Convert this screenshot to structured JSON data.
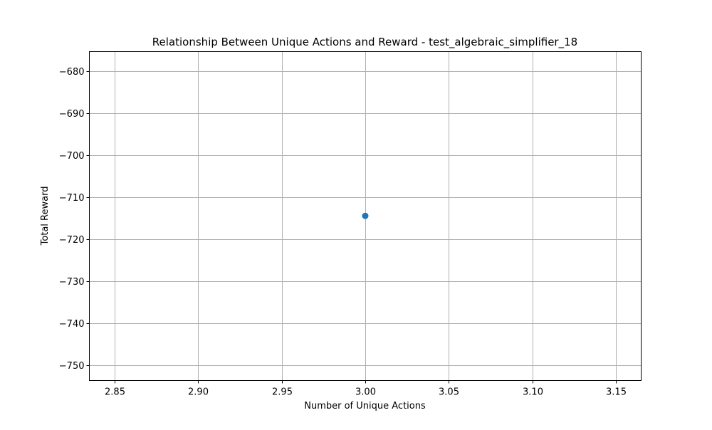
{
  "chart_data": {
    "type": "scatter",
    "title": "Relationship Between Unique Actions and Reward - test_algebraic_simplifier_18",
    "xlabel": "Number of Unique Actions",
    "ylabel": "Total Reward",
    "xlim": [
      2.835,
      3.165
    ],
    "ylim": [
      -753.6,
      -675.3
    ],
    "x_ticks": [
      2.85,
      2.9,
      2.95,
      3.0,
      3.05,
      3.1,
      3.15
    ],
    "x_tick_labels": [
      "2.85",
      "2.90",
      "2.95",
      "3.00",
      "3.05",
      "3.10",
      "3.15"
    ],
    "y_ticks": [
      -680,
      -690,
      -700,
      -710,
      -720,
      -730,
      -740,
      -750
    ],
    "y_tick_labels": [
      "−680",
      "−690",
      "−700",
      "−710",
      "−720",
      "−730",
      "−740",
      "−750"
    ],
    "grid": true,
    "series": [
      {
        "color": "#1f77b4",
        "points": [
          {
            "x": 3.0,
            "y": -714.4
          }
        ]
      }
    ]
  }
}
